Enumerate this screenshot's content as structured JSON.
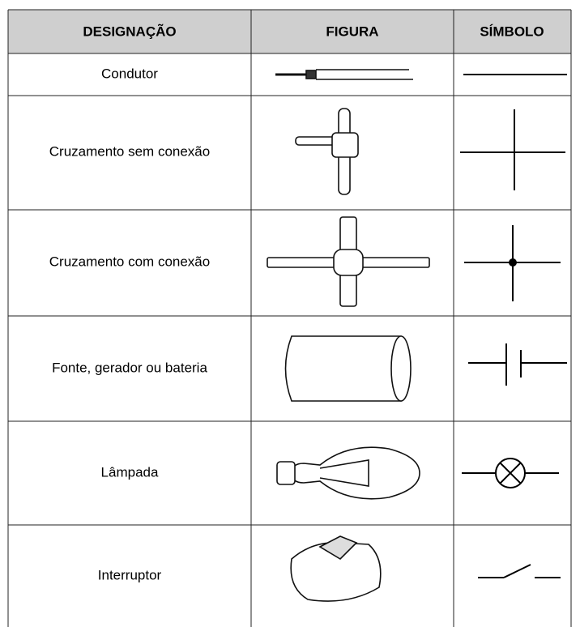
{
  "header": {
    "columns": [
      "DESIGNAÇÃO",
      "FIGURA",
      "SÍMBOLO"
    ]
  },
  "table": {
    "rows": [
      {
        "label": "Condutor"
      },
      {
        "label": "Cruzamento sem conexão"
      },
      {
        "label": "Cruzamento com conexão"
      },
      {
        "label": "Fonte, gerador ou bateria"
      },
      {
        "label": "Lâmpada"
      },
      {
        "label": "Interruptor"
      }
    ]
  }
}
